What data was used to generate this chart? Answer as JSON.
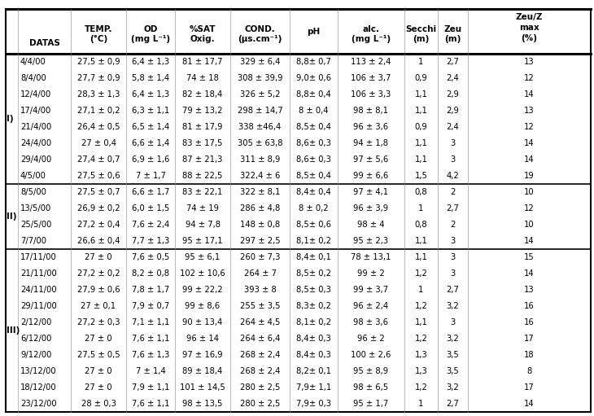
{
  "rows": [
    [
      "4/4/00",
      "27,5 ± 0,9",
      "6,4 ± 1,3",
      "81 ± 17,7",
      "329 ± 6,4",
      "8,8± 0,7",
      "113 ± 2,4",
      "1",
      "2,7",
      "13"
    ],
    [
      "8/4/00",
      "27,7 ± 0,9",
      "5,8 ± 1,4",
      "74 ± 18",
      "308 ± 39,9",
      "9,0± 0,6",
      "106 ± 3,7",
      "0,9",
      "2,4",
      "12"
    ],
    [
      "12/4/00",
      "28,3 ± 1,3",
      "6,4 ± 1,3",
      "82 ± 18,4",
      "326 ± 5,2",
      "8,8± 0,4",
      "106 ± 3,3",
      "1,1",
      "2,9",
      "14"
    ],
    [
      "17/4/00",
      "27,1 ± 0,2",
      "6,3 ± 1,1",
      "79 ± 13,2",
      "298 ± 14,7",
      "8 ± 0,4",
      "98 ± 8,1",
      "1,1",
      "2,9",
      "13"
    ],
    [
      "21/4/00",
      "26,4 ± 0,5",
      "6,5 ± 1,4",
      "81 ± 17,9",
      "338 ±46,4",
      "8,5± 0,4",
      "96 ± 3,6",
      "0,9",
      "2,4",
      "12"
    ],
    [
      "24/4/00",
      "27 ± 0,4",
      "6,6 ± 1,4",
      "83 ± 17,5",
      "305 ± 63,8",
      "8,6± 0,3",
      "94 ± 1,8",
      "1,1",
      "3",
      "14"
    ],
    [
      "29/4/00",
      "27,4 ± 0,7",
      "6,9 ± 1,6",
      "87 ± 21,3",
      "311 ± 8,9",
      "8,6± 0,3",
      "97 ± 5,6",
      "1,1",
      "3",
      "14"
    ],
    [
      "4/5/00",
      "27,5 ± 0,6",
      "7 ± 1,7",
      "88 ± 22,5",
      "322,4 ± 6",
      "8,5± 0,4",
      "99 ± 6,6",
      "1,5",
      "4,2",
      "19"
    ],
    [
      "8/5/00",
      "27,5 ± 0,7",
      "6,6 ± 1,7",
      "83 ± 22,1",
      "322 ± 8,1",
      "8,4± 0,4",
      "97 ± 4,1",
      "0,8",
      "2",
      "10"
    ],
    [
      "13/5/00",
      "26,9 ± 0,2",
      "6,0 ± 1,5",
      "74 ± 19",
      "286 ± 4,8",
      "8 ± 0,2",
      "96 ± 3,9",
      "1",
      "2,7",
      "12"
    ],
    [
      "25/5/00",
      "27,2 ± 0,4",
      "7,6 ± 2,4",
      "94 ± 7,8",
      "148 ± 0,8",
      "8,5± 0,6",
      "98 ± 4",
      "0,8",
      "2",
      "10"
    ],
    [
      "7/7/00",
      "26,6 ± 0,4",
      "7,7 ± 1,3",
      "95 ± 17,1",
      "297 ± 2,5",
      "8,1± 0,2",
      "95 ± 2,3",
      "1,1",
      "3",
      "14"
    ],
    [
      "17/11/00",
      "27 ± 0",
      "7,6 ± 0,5",
      "95 ± 6,1",
      "260 ± 7,3",
      "8,4± 0,1",
      "78 ± 13,1",
      "1,1",
      "3",
      "15"
    ],
    [
      "21/11/00",
      "27,2 ± 0,2",
      "8,2 ± 0,8",
      "102 ± 10,6",
      "264 ± 7",
      "8,5± 0,2",
      "99 ± 2",
      "1,2",
      "3",
      "14"
    ],
    [
      "24/11/00",
      "27,9 ± 0,6",
      "7,8 ± 1,7",
      "99 ± 22,2",
      "393 ± 8",
      "8,5± 0,3",
      "99 ± 3,7",
      "1",
      "2,7",
      "13"
    ],
    [
      "29/11/00",
      "27 ± 0,1",
      "7,9 ± 0,7",
      "99 ± 8,6",
      "255 ± 3,5",
      "8,3± 0,2",
      "96 ± 2,4",
      "1,2",
      "3,2",
      "16"
    ],
    [
      "2/12/00",
      "27,2 ± 0,3",
      "7,1 ± 1,1",
      "90 ± 13,4",
      "264 ± 4,5",
      "8,1± 0,2",
      "98 ± 3,6",
      "1,1",
      "3",
      "16"
    ],
    [
      "6/12/00",
      "27 ± 0",
      "7,6 ± 1,1",
      "96 ± 14",
      "264 ± 6,4",
      "8,4± 0,3",
      "96 ± 2",
      "1,2",
      "3,2",
      "17"
    ],
    [
      "9/12/00",
      "27,5 ± 0,5",
      "7,6 ± 1,3",
      "97 ± 16,9",
      "268 ± 2,4",
      "8,4± 0,3",
      "100 ± 2,6",
      "1,3",
      "3,5",
      "18"
    ],
    [
      "13/12/00",
      "27 ± 0",
      "7 ± 1,4",
      "89 ± 18,4",
      "268 ± 2,4",
      "8,2± 0,1",
      "95 ± 8,9",
      "1,3",
      "3,5",
      "8"
    ],
    [
      "18/12/00",
      "27 ± 0",
      "7,9 ± 1,1",
      "101 ± 14,5",
      "280 ± 2,5",
      "7,9± 1,1",
      "98 ± 6,5",
      "1,2",
      "3,2",
      "17"
    ],
    [
      "23/12/00",
      "28 ± 0,3",
      "7,6 ± 1,1",
      "98 ± 13,5",
      "280 ± 2,5",
      "7,9± 0,3",
      "95 ± 1,7",
      "1",
      "2,7",
      "14"
    ]
  ],
  "group_info": [
    {
      "label": "I)",
      "start": 0,
      "end": 7
    },
    {
      "label": "II)",
      "start": 8,
      "end": 11
    },
    {
      "label": "III)",
      "start": 12,
      "end": 21
    }
  ],
  "separator_after_rows": [
    7,
    11
  ],
  "bg_color": "#ffffff",
  "text_color": "#000000",
  "figsize": [
    7.3,
    5.11
  ],
  "dpi": 100
}
